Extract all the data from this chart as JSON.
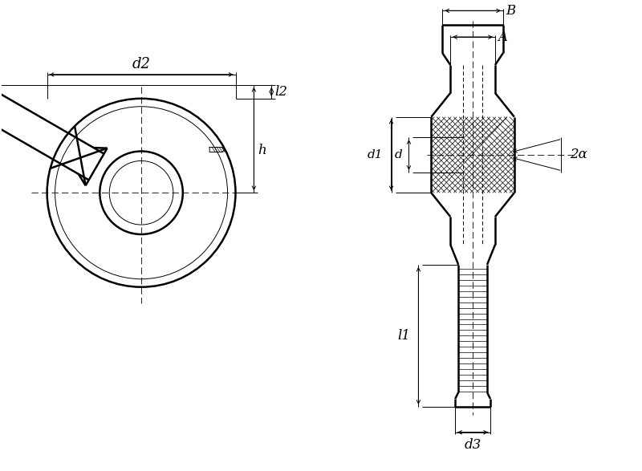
{
  "bg_color": "#ffffff",
  "line_color": "#000000",
  "thin": 0.7,
  "medium": 1.2,
  "thick": 1.8,
  "fig_width": 8.0,
  "fig_height": 5.87,
  "labels": {
    "d2": "d2",
    "h": "h",
    "l2": "l2",
    "B": "B",
    "A": "A",
    "d1": "d1",
    "d": "d",
    "2alpha": "2α",
    "l1": "l1",
    "d3": "d3"
  }
}
